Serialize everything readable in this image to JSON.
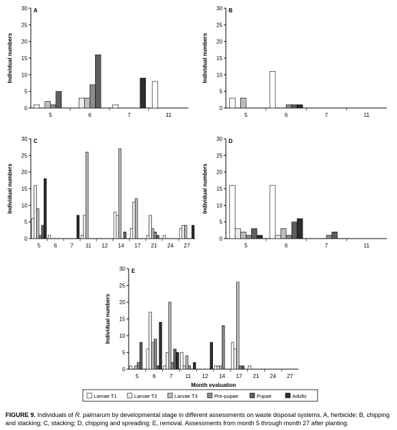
{
  "figure": {
    "caption_label": "FIGURE 9.",
    "caption_parts": [
      {
        "text": " Individuals of ",
        "style": "normal"
      },
      {
        "text": "R. palmarum",
        "style": "italic"
      },
      {
        "text": " by developmental stage in different assessments on waste disposal systems. A, herbicide; B, chipping and stacking; C, stacking; D, chipping and spreading; E, removal. Assessments from month 5 through month 27 after planting.",
        "style": "normal"
      }
    ]
  },
  "legend": {
    "items": [
      {
        "label": "Larvae T1",
        "color": "#ffffff"
      },
      {
        "label": "Larvae T2",
        "color": "#ececec"
      },
      {
        "label": "Larvae T3",
        "color": "#bdbdbd"
      },
      {
        "label": "Pre-pupae",
        "color": "#8c8c8c"
      },
      {
        "label": "Pupae",
        "color": "#5e5e5e"
      },
      {
        "label": "Adults",
        "color": "#2e2e2e"
      }
    ]
  },
  "chart_data": [
    {
      "panel": "A",
      "type": "bar",
      "ylabel": "Individual numbers",
      "xlabel": "",
      "ylim": [
        0,
        30
      ],
      "yticks": [
        0,
        5,
        10,
        15,
        20,
        25,
        30
      ],
      "categories": [
        "5",
        "6",
        "7",
        "11"
      ],
      "series": [
        {
          "name": "Larvae T1",
          "values": [
            1,
            0,
            1,
            8
          ]
        },
        {
          "name": "Larvae T2",
          "values": [
            0,
            3,
            0,
            0
          ]
        },
        {
          "name": "Larvae T3",
          "values": [
            2,
            3,
            0,
            0
          ]
        },
        {
          "name": "Pre-pupae",
          "values": [
            1,
            7,
            0,
            0
          ]
        },
        {
          "name": "Pupae",
          "values": [
            5,
            16,
            0,
            0
          ]
        },
        {
          "name": "Adults",
          "values": [
            0,
            0,
            9,
            0
          ]
        }
      ]
    },
    {
      "panel": "B",
      "type": "bar",
      "ylabel": "Individual numbers",
      "xlabel": "",
      "ylim": [
        0,
        30
      ],
      "yticks": [
        0,
        5,
        10,
        15,
        20,
        25,
        30
      ],
      "categories": [
        "5",
        "6",
        "7",
        "11"
      ],
      "series": [
        {
          "name": "Larvae T1",
          "values": [
            3,
            11,
            0,
            0
          ]
        },
        {
          "name": "Larvae T2",
          "values": [
            0,
            0,
            0,
            0
          ]
        },
        {
          "name": "Larvae T3",
          "values": [
            3,
            0,
            0,
            0
          ]
        },
        {
          "name": "Pre-pupae",
          "values": [
            0,
            1,
            0,
            0
          ]
        },
        {
          "name": "Pupae",
          "values": [
            0,
            1,
            0,
            0
          ]
        },
        {
          "name": "Adults",
          "values": [
            0,
            1,
            0,
            0
          ]
        }
      ]
    },
    {
      "panel": "C",
      "type": "bar",
      "ylabel": "Individual numbers",
      "xlabel": "",
      "ylim": [
        0,
        30
      ],
      "yticks": [
        0,
        5,
        10,
        15,
        20,
        25,
        30
      ],
      "categories": [
        "5",
        "6",
        "7",
        "11",
        "12",
        "14",
        "17",
        "21",
        "24",
        "27"
      ],
      "series": [
        {
          "name": "Larvae T1",
          "values": [
            6,
            1,
            0,
            1,
            0,
            8,
            3,
            1,
            1,
            3
          ]
        },
        {
          "name": "Larvae T2",
          "values": [
            16,
            0,
            0,
            7,
            0,
            7,
            11,
            7,
            0,
            4
          ]
        },
        {
          "name": "Larvae T3",
          "values": [
            9,
            0,
            0,
            26,
            0,
            27,
            12,
            3,
            0,
            4
          ]
        },
        {
          "name": "Pre-pupae",
          "values": [
            1,
            0,
            0,
            0,
            0,
            0,
            0,
            2,
            0,
            0
          ]
        },
        {
          "name": "Pupae",
          "values": [
            4,
            0,
            0,
            0,
            0,
            2,
            0,
            1,
            0,
            0
          ]
        },
        {
          "name": "Adults",
          "values": [
            18,
            0,
            7,
            0,
            0,
            0,
            0,
            0,
            0,
            4
          ]
        }
      ]
    },
    {
      "panel": "D",
      "type": "bar",
      "ylabel": "Individual numbers",
      "xlabel": "",
      "ylim": [
        0,
        30
      ],
      "yticks": [
        0,
        5,
        10,
        15,
        20,
        25,
        30
      ],
      "categories": [
        "5",
        "6",
        "7",
        "11"
      ],
      "series": [
        {
          "name": "Larvae T1",
          "values": [
            16,
            16,
            0,
            0
          ]
        },
        {
          "name": "Larvae T2",
          "values": [
            3,
            1,
            0,
            0
          ]
        },
        {
          "name": "Larvae T3",
          "values": [
            2,
            3,
            0,
            0
          ]
        },
        {
          "name": "Pre-pupae",
          "values": [
            1,
            1,
            1,
            0
          ]
        },
        {
          "name": "Pupae",
          "values": [
            3,
            5,
            2,
            0
          ]
        },
        {
          "name": "Adults",
          "values": [
            1,
            6,
            0,
            0
          ]
        }
      ]
    },
    {
      "panel": "E",
      "type": "bar",
      "ylabel": "Individual numbers",
      "xlabel": "Month evaluation",
      "ylim": [
        0,
        30
      ],
      "yticks": [
        0,
        5,
        10,
        15,
        20,
        25,
        30
      ],
      "categories": [
        "5",
        "6",
        "7",
        "11",
        "12",
        "14",
        "17",
        "21",
        "24",
        "27"
      ],
      "series": [
        {
          "name": "Larvae T1",
          "values": [
            1,
            6,
            1,
            5,
            0,
            1,
            8,
            1,
            0,
            0
          ]
        },
        {
          "name": "Larvae T2",
          "values": [
            0,
            17,
            5,
            1,
            0,
            1,
            6,
            0,
            0,
            0
          ]
        },
        {
          "name": "Larvae T3",
          "values": [
            1,
            8,
            20,
            4,
            0,
            1,
            26,
            0,
            0,
            0
          ]
        },
        {
          "name": "Pre-pupae",
          "values": [
            2,
            9,
            2,
            1,
            0,
            13,
            1,
            0,
            0,
            0
          ]
        },
        {
          "name": "Pupae",
          "values": [
            8,
            1,
            6,
            0,
            0,
            0,
            1,
            0,
            0,
            0
          ]
        },
        {
          "name": "Adults",
          "values": [
            0,
            14,
            5,
            2,
            8,
            0,
            0,
            0,
            0,
            0
          ]
        }
      ]
    }
  ]
}
